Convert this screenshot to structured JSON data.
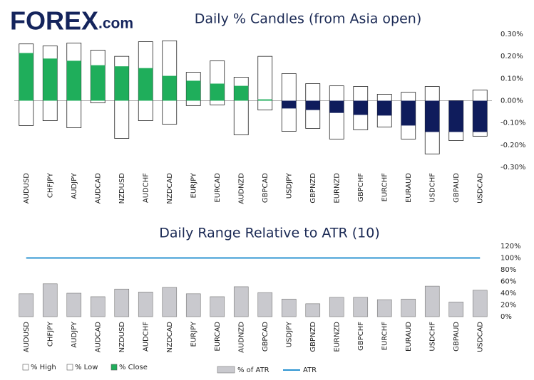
{
  "logo": {
    "brand": "FOREX",
    "suffix": ".com"
  },
  "chart_data": [
    {
      "type": "candlestick",
      "title": "Daily % Candles (from Asia open)",
      "categories": [
        "AUDUSD",
        "CHFJPY",
        "AUDJPY",
        "AUDCAD",
        "NZDUSD",
        "AUDCHF",
        "NZDCAD",
        "EURJPY",
        "EURCAD",
        "AUDNZD",
        "GBPCAD",
        "USDJPY",
        "GBPNZD",
        "EURNZD",
        "GBPCHF",
        "EURCHF",
        "EURAUD",
        "USDCHF",
        "GBPAUD",
        "USDCAD"
      ],
      "series": [
        {
          "name": "% High",
          "color": "#ffffff",
          "values": [
            0.256,
            0.247,
            0.26,
            0.228,
            0.2,
            0.266,
            0.27,
            0.128,
            0.18,
            0.106,
            0.2,
            0.122,
            0.077,
            0.067,
            0.064,
            0.029,
            0.038,
            0.064,
            0.0,
            0.048
          ]
        },
        {
          "name": "% Low",
          "color": "#ffffff",
          "values": [
            -0.112,
            -0.09,
            -0.122,
            -0.01,
            -0.17,
            -0.09,
            -0.106,
            -0.022,
            -0.019,
            -0.154,
            -0.042,
            -0.138,
            -0.125,
            -0.173,
            -0.131,
            -0.119,
            -0.173,
            -0.24,
            -0.18,
            -0.16
          ]
        },
        {
          "name": "% Close",
          "color": "#1fae5b",
          "negative_color": "#0f1c5c",
          "values": [
            0.215,
            0.19,
            0.18,
            0.16,
            0.155,
            0.147,
            0.112,
            0.09,
            0.077,
            0.067,
            0.006,
            -0.035,
            -0.042,
            -0.055,
            -0.064,
            -0.067,
            -0.112,
            -0.141,
            -0.141,
            -0.141
          ]
        }
      ],
      "ylim": [
        -0.3,
        0.3
      ],
      "yticks": [
        {
          "value": 0.3,
          "label": "0.30%"
        },
        {
          "value": 0.2,
          "label": "0.20%"
        },
        {
          "value": 0.1,
          "label": "0.10%"
        },
        {
          "value": 0,
          "label": "0.00%"
        },
        {
          "value": -0.1,
          "label": "-0.10%"
        },
        {
          "value": -0.2,
          "label": "-0.20%"
        },
        {
          "value": -0.3,
          "label": "-0.30%"
        }
      ]
    },
    {
      "type": "bar",
      "title": "Daily Range Relative to ATR (10)",
      "categories": [
        "AUDUSD",
        "CHFJPY",
        "AUDJPY",
        "AUDCAD",
        "NZDUSD",
        "AUDCHF",
        "NZDCAD",
        "EURJPY",
        "EURCAD",
        "AUDNZD",
        "GBPCAD",
        "USDJPY",
        "GBPNZD",
        "EURNZD",
        "GBPCHF",
        "EURCHF",
        "EURAUD",
        "USDCHF",
        "GBPAUD",
        "USDCAD"
      ],
      "series": [
        {
          "name": "% of ATR",
          "type": "bar",
          "color": "#c9c9ce",
          "values": [
            39,
            56,
            40,
            34,
            47,
            42,
            50,
            39,
            34,
            51,
            41,
            30,
            22,
            33,
            33,
            29,
            30,
            52,
            25,
            45
          ]
        },
        {
          "name": "ATR",
          "type": "line",
          "color": "#2b93d1",
          "values": [
            100,
            100,
            100,
            100,
            100,
            100,
            100,
            100,
            100,
            100,
            100,
            100,
            100,
            100,
            100,
            100,
            100,
            100,
            100,
            100
          ]
        }
      ],
      "ylim": [
        0,
        120
      ],
      "yticks": [
        {
          "value": 0,
          "label": "0%"
        },
        {
          "value": 20,
          "label": "20%"
        },
        {
          "value": 40,
          "label": "40%"
        },
        {
          "value": 60,
          "label": "60%"
        },
        {
          "value": 80,
          "label": "80%"
        },
        {
          "value": 100,
          "label": "100%"
        },
        {
          "value": 120,
          "label": "120%"
        }
      ]
    }
  ]
}
